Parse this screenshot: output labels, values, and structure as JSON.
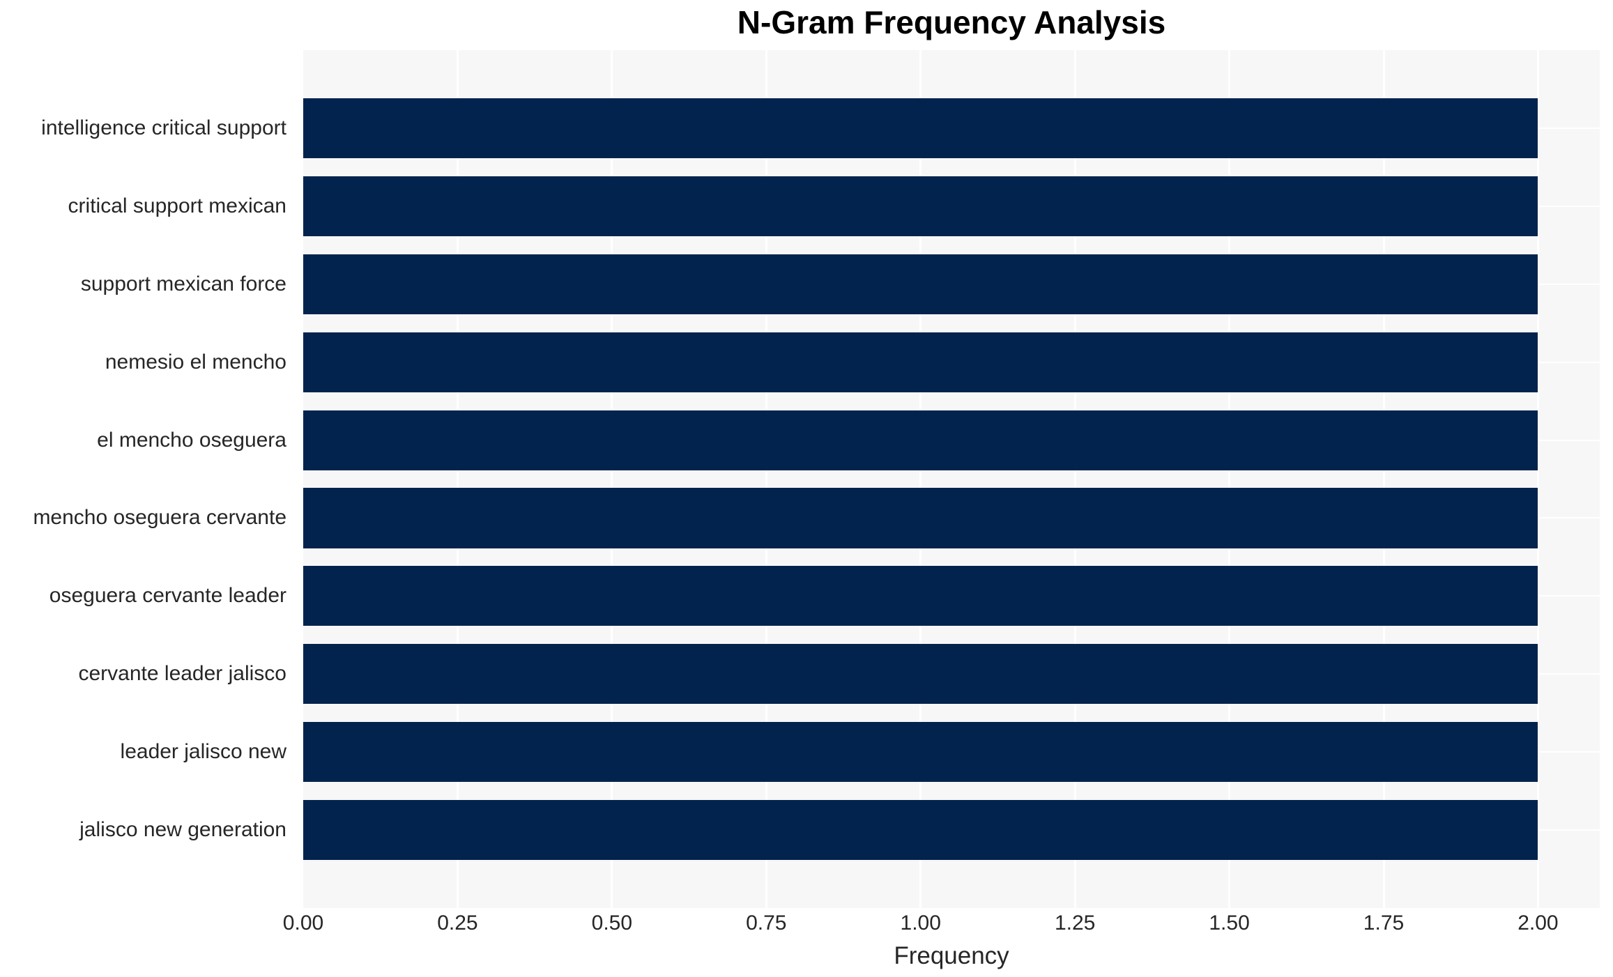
{
  "chart_data": {
    "type": "bar",
    "orientation": "horizontal",
    "title": "N-Gram Frequency Analysis",
    "xlabel": "Frequency",
    "ylabel": "",
    "categories": [
      "intelligence critical support",
      "critical support mexican",
      "support mexican force",
      "nemesio el mencho",
      "el mencho oseguera",
      "mencho oseguera cervante",
      "oseguera cervante leader",
      "cervante leader jalisco",
      "leader jalisco new",
      "jalisco new generation"
    ],
    "values": [
      2,
      2,
      2,
      2,
      2,
      2,
      2,
      2,
      2,
      2
    ],
    "xlim": [
      0,
      2.1
    ],
    "xticks": [
      0,
      0.25,
      0.5,
      0.75,
      1.0,
      1.25,
      1.5,
      1.75,
      2.0
    ],
    "xtick_labels": [
      "0.00",
      "0.25",
      "0.50",
      "0.75",
      "1.00",
      "1.25",
      "1.50",
      "1.75",
      "2.00"
    ],
    "grid": true,
    "legend": null,
    "colors": {
      "bar": "#02234d",
      "plot_background": "#f7f7f7",
      "gridline": "#ffffff",
      "tick_text": "#262626",
      "title_text": "#000000",
      "page_background": "#ffffff"
    }
  }
}
